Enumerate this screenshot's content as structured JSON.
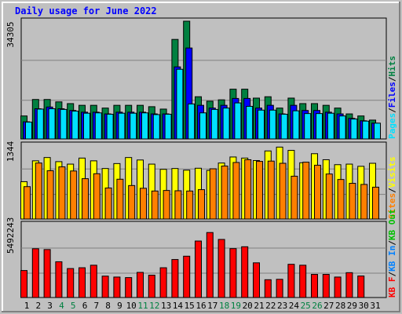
{
  "chart_data": {
    "type": "bar",
    "title": "Daily usage for June 2022",
    "days": [
      "1",
      "2",
      "3",
      "4",
      "5",
      "6",
      "7",
      "8",
      "9",
      "10",
      "11",
      "12",
      "13",
      "14",
      "15",
      "16",
      "17",
      "18",
      "19",
      "20",
      "21",
      "22",
      "23",
      "24",
      "25",
      "26",
      "27",
      "28",
      "29",
      "30",
      "31"
    ],
    "weekend_days": [
      "4",
      "5",
      "11",
      "12",
      "18",
      "19",
      "25",
      "26"
    ],
    "panels": [
      {
        "id": "hits-files-pages",
        "ymax_label": "34305",
        "ymax": 34305,
        "legend": [
          {
            "text": "Pages",
            "color": "#00e0ff"
          },
          {
            "text": "/",
            "color": "#000000"
          },
          {
            "text": "Files",
            "color": "#0000ff"
          },
          {
            "text": "/",
            "color": "#000000"
          },
          {
            "text": "Hits",
            "color": "#008040"
          }
        ],
        "series": [
          {
            "name": "Hits",
            "color": "#008040",
            "offset": 0,
            "values": [
              6700,
              11500,
              11500,
              10800,
              10300,
              9800,
              9800,
              9000,
              9800,
              9800,
              9800,
              9400,
              8700,
              29000,
              34305,
              12300,
              11000,
              11400,
              14500,
              14500,
              11900,
              12300,
              9000,
              11900,
              10300,
              10300,
              9800,
              9000,
              7300,
              6700,
              5500
            ]
          },
          {
            "name": "Files",
            "color": "#0000ff",
            "offset": 3,
            "values": [
              5000,
              8800,
              9300,
              8800,
              8300,
              7800,
              7800,
              7300,
              7800,
              7800,
              7800,
              7300,
              7300,
              21000,
              26500,
              9800,
              9000,
              9800,
              11800,
              11800,
              9000,
              9800,
              7300,
              9800,
              8300,
              8300,
              7800,
              7300,
              6000,
              5300,
              4600
            ]
          },
          {
            "name": "Pages",
            "color": "#00e0ff",
            "offset": 6,
            "values": [
              4900,
              8700,
              8800,
              8600,
              8100,
              7500,
              7600,
              7200,
              7500,
              7500,
              7600,
              7100,
              7200,
              20300,
              10200,
              7600,
              8600,
              9000,
              10500,
              9500,
              8400,
              8400,
              7200,
              8200,
              7400,
              7400,
              7500,
              6700,
              5800,
              5200,
              4600
            ]
          }
        ]
      },
      {
        "id": "visits-sites",
        "ymax_label": "1344",
        "ymax": 1344,
        "legend": [
          {
            "text": "Sites",
            "color": "#ff8000"
          },
          {
            "text": "/",
            "color": "#000000"
          },
          {
            "text": "Visits",
            "color": "#ffff00"
          }
        ],
        "series": [
          {
            "name": "Visits",
            "color": "#ffff00",
            "offset": 0,
            "values": [
              680,
              1060,
              1120,
              1045,
              1000,
              1110,
              1060,
              920,
              1010,
              1120,
              1075,
              1000,
              905,
              920,
              890,
              925,
              885,
              1020,
              1130,
              1110,
              1065,
              1240,
              1310,
              1250,
              1025,
              1190,
              1080,
              990,
              1000,
              960,
              1015
            ]
          },
          {
            "name": "Sites",
            "color": "#ff8000",
            "offset": 4,
            "values": [
              590,
              1020,
              880,
              950,
              875,
              735,
              825,
              565,
              725,
              610,
              560,
              510,
              520,
              515,
              510,
              535,
              915,
              965,
              1030,
              1080,
              1050,
              1055,
              1015,
              780,
              1035,
              980,
              820,
              720,
              650,
              630,
              580
            ]
          }
        ]
      },
      {
        "id": "kb",
        "ymax_label": "5492243",
        "ymax": 5492243,
        "legend": [
          {
            "text": "KB F",
            "color": "#ff0000"
          },
          {
            "text": "/",
            "color": "#000000"
          },
          {
            "text": "KB In",
            "color": "#0080ff"
          },
          {
            "text": "/",
            "color": "#000000"
          },
          {
            "text": "KB Out",
            "color": "#00c000"
          }
        ],
        "series": [
          {
            "name": "KB F",
            "color": "#ff0000",
            "offset": 0,
            "values": [
              2030000,
              3670000,
              3610000,
              2690000,
              2180000,
              2240000,
              2430000,
              1610000,
              1540000,
              1500000,
              1890000,
              1680000,
              2240000,
              2860000,
              3110000,
              4250000,
              4890000,
              4370000,
              3680000,
              3820000,
              2610000,
              1340000,
              1370000,
              2500000,
              2430000,
              1740000,
              1740000,
              1540000,
              1870000,
              1620000,
              0
            ]
          }
        ]
      }
    ]
  }
}
